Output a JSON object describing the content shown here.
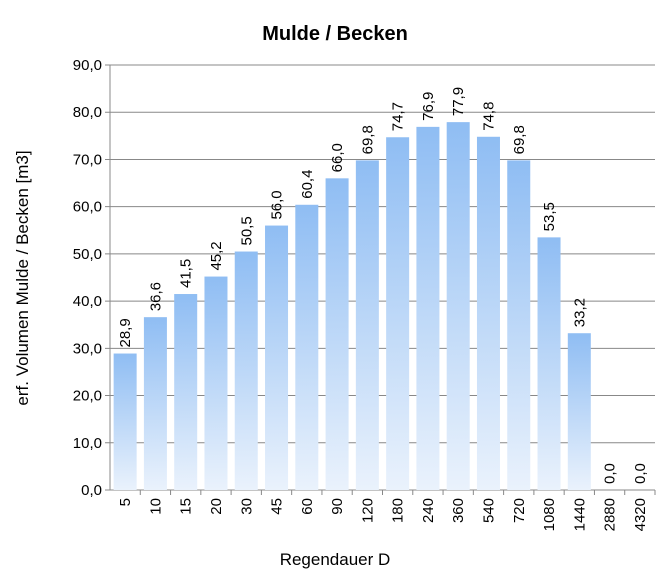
{
  "chart_data": {
    "type": "bar",
    "title": "Mulde / Becken",
    "x_label": "Regendauer D",
    "y_label": "erf. Volumen Mulde / Becken [m3]",
    "categories": [
      "5",
      "10",
      "15",
      "20",
      "30",
      "45",
      "60",
      "90",
      "120",
      "180",
      "240",
      "360",
      "540",
      "720",
      "1080",
      "1440",
      "2880",
      "4320"
    ],
    "values": [
      28.9,
      36.6,
      41.5,
      45.2,
      50.5,
      56.0,
      60.4,
      66.0,
      69.8,
      74.7,
      76.9,
      77.9,
      74.8,
      69.8,
      53.5,
      33.2,
      0.0,
      0.0
    ],
    "value_labels": [
      "28,9",
      "36,6",
      "41,5",
      "45,2",
      "50,5",
      "56,0",
      "60,4",
      "66,0",
      "69,8",
      "74,7",
      "76,9",
      "77,9",
      "74,8",
      "69,8",
      "53,5",
      "33,2",
      "0,0",
      "0,0"
    ],
    "color": "#8fbdf3",
    "ylim": [
      0,
      90
    ],
    "yticks": [
      {
        "value": 0,
        "label": "0,0"
      },
      {
        "value": 10,
        "label": "10,0"
      },
      {
        "value": 20,
        "label": "20,0"
      },
      {
        "value": 30,
        "label": "30,0"
      },
      {
        "value": 40,
        "label": "40,0"
      },
      {
        "value": 50,
        "label": "50,0"
      },
      {
        "value": 60,
        "label": "60,0"
      },
      {
        "value": 70,
        "label": "70,0"
      },
      {
        "value": 80,
        "label": "80,0"
      },
      {
        "value": 90,
        "label": "90,0"
      }
    ],
    "grid": true
  }
}
